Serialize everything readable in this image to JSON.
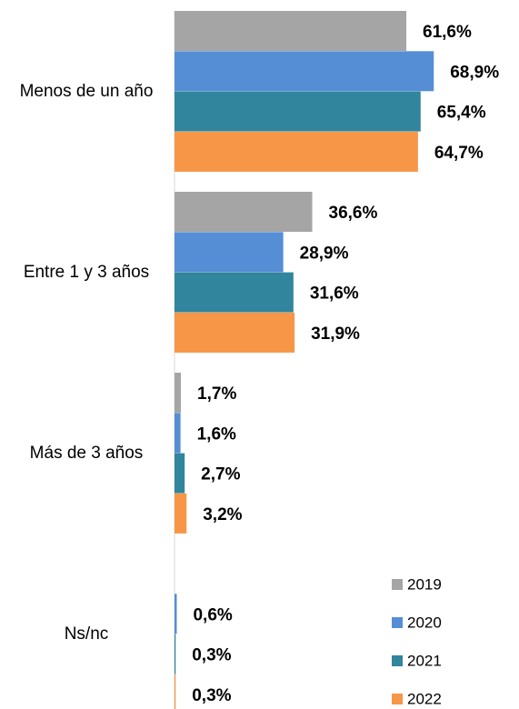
{
  "chart_data": {
    "type": "bar",
    "orientation": "horizontal",
    "categories": [
      "Menos de un año",
      "Entre 1 y 3 años",
      "Más de 3 años",
      "Ns/nc"
    ],
    "series": [
      {
        "name": "2019",
        "color": "#a5a5a5",
        "values": [
          61.6,
          36.6,
          1.7,
          null
        ],
        "value_labels": [
          "61,6%",
          "36,6%",
          "1,7%",
          null
        ]
      },
      {
        "name": "2020",
        "color": "#558ed5",
        "values": [
          68.9,
          28.9,
          1.6,
          0.6
        ],
        "value_labels": [
          "68,9%",
          "28,9%",
          "1,6%",
          "0,6%"
        ]
      },
      {
        "name": "2021",
        "color": "#31859c",
        "values": [
          65.4,
          31.6,
          2.7,
          0.3
        ],
        "value_labels": [
          "65,4%",
          "31,6%",
          "2,7%",
          "0,3%"
        ]
      },
      {
        "name": "2022",
        "color": "#f79646",
        "values": [
          64.7,
          31.9,
          3.2,
          0.3
        ],
        "value_labels": [
          "64,7%",
          "31,9%",
          "3,2%",
          "0,3%"
        ]
      }
    ],
    "legend": "bottom-right"
  }
}
